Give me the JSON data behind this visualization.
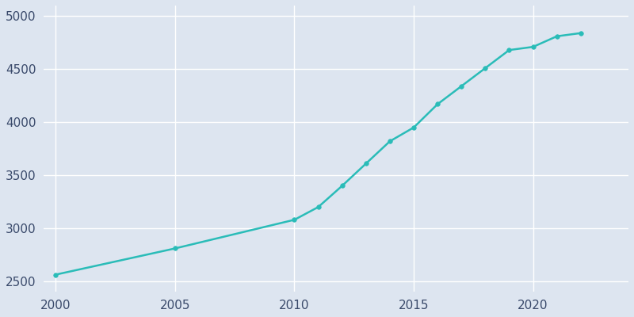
{
  "years": [
    2000,
    2005,
    2010,
    2011,
    2012,
    2013,
    2014,
    2015,
    2016,
    2017,
    2018,
    2019,
    2020,
    2021,
    2022
  ],
  "population": [
    2563,
    2810,
    3080,
    3200,
    3400,
    3610,
    3820,
    3950,
    4170,
    4340,
    4510,
    4680,
    4710,
    4810,
    4840
  ],
  "line_color": "#2abcb8",
  "marker_style": "o",
  "marker_size": 4,
  "background_color": "#dde5f0",
  "grid_color": "#ffffff",
  "tick_color": "#3a4a6b",
  "ylim": [
    2400,
    5100
  ],
  "xlim": [
    1999.5,
    2024
  ],
  "yticks": [
    2500,
    3000,
    3500,
    4000,
    4500,
    5000
  ],
  "xticks": [
    2000,
    2005,
    2010,
    2015,
    2020
  ],
  "line_width": 1.8,
  "tick_fontsize": 11
}
